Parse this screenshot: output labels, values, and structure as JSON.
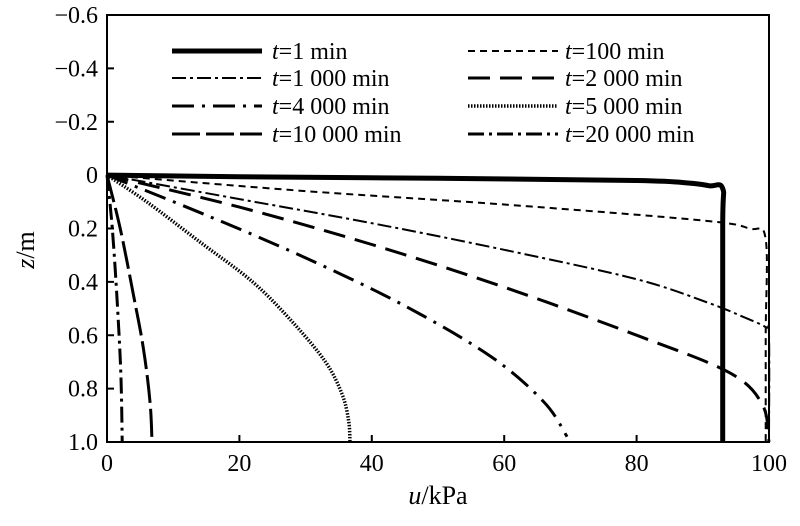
{
  "chart_data": {
    "type": "line",
    "xlabel": {
      "var": "u",
      "unit": "/kPa"
    },
    "ylabel": {
      "var": "z",
      "unit": "/m"
    },
    "xlim": [
      0,
      100
    ],
    "ylim": [
      -0.6,
      1.0
    ],
    "y_inverted": true,
    "x_ticks": [
      "0",
      "20",
      "40",
      "60",
      "80",
      "100"
    ],
    "y_ticks": [
      "−0.6",
      "−0.4",
      "−0.2",
      "0",
      "0.2",
      "0.4",
      "0.6",
      "0.8",
      "1.0"
    ],
    "grid": false,
    "legend_position": "top",
    "series": [
      {
        "name": "t=1 min",
        "t": "t",
        "rest": "=1 min",
        "style": "solid-thick",
        "x": [
          0,
          20,
          50,
          80,
          88,
          91,
          93,
          93,
          93
        ],
        "y": [
          0,
          0.006,
          0.012,
          0.02,
          0.03,
          0.04,
          0.05,
          0.2,
          1.0
        ]
      },
      {
        "name": "t=100 min",
        "t": "t",
        "rest": "=100 min",
        "style": "short-dash",
        "x": [
          0,
          30,
          60,
          90,
          97,
          99.5,
          99.5,
          99.5
        ],
        "y": [
          0,
          0.06,
          0.11,
          0.17,
          0.2,
          0.24,
          0.6,
          1.0
        ]
      },
      {
        "name": "t=1 000 min",
        "t": "t",
        "rest": "=1 000 min",
        "style": "dash-dot",
        "x": [
          0,
          20,
          40,
          60,
          80,
          91,
          96,
          99.5,
          100,
          100
        ],
        "y": [
          0,
          0.09,
          0.18,
          0.28,
          0.39,
          0.48,
          0.53,
          0.57,
          0.6,
          1.0
        ]
      },
      {
        "name": "t=2 000 min",
        "t": "t",
        "rest": "=2 000 min",
        "style": "long-dash",
        "x": [
          0,
          20,
          40,
          60,
          80,
          94,
          99,
          100
        ],
        "y": [
          0,
          0.12,
          0.26,
          0.42,
          0.6,
          0.74,
          0.86,
          1.0
        ]
      },
      {
        "name": "t=4 000 min",
        "t": "t",
        "rest": "=4 000 min",
        "style": "dash-dot-long",
        "x": [
          0,
          15,
          30,
          45,
          58,
          66,
          69.5
        ],
        "y": [
          0,
          0.15,
          0.31,
          0.49,
          0.68,
          0.85,
          0.98
        ]
      },
      {
        "name": "t=5 000 min",
        "t": "t",
        "rest": "=5 000 min",
        "style": "dotted",
        "x": [
          0,
          6,
          14,
          22,
          28,
          33,
          35.5,
          36.5,
          36.7
        ],
        "y": [
          0,
          0.1,
          0.25,
          0.4,
          0.55,
          0.7,
          0.82,
          0.92,
          1.0
        ]
      },
      {
        "name": "t=10 000 min",
        "t": "t",
        "rest": "=10 000 min",
        "style": "long-dash-thick",
        "x": [
          0,
          2,
          4,
          5.5,
          6.5,
          6.8
        ],
        "y": [
          0,
          0.2,
          0.45,
          0.65,
          0.85,
          1.0
        ]
      },
      {
        "name": "t=20 000 min",
        "t": "t",
        "rest": "=20 000 min",
        "style": "dash-dot-thick",
        "x": [
          0,
          0.8,
          1.6,
          2.1,
          2.3
        ],
        "y": [
          0,
          0.2,
          0.5,
          0.75,
          1.0
        ]
      }
    ]
  }
}
